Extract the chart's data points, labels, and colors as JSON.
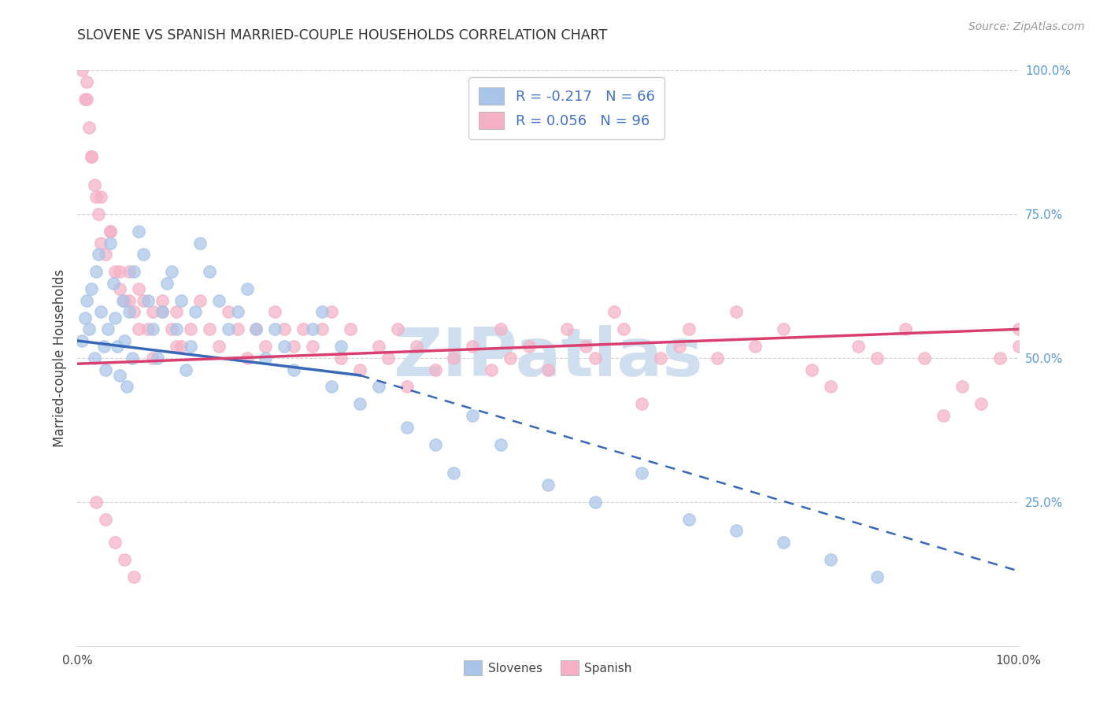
{
  "title": "SLOVENE VS SPANISH MARRIED-COUPLE HOUSEHOLDS CORRELATION CHART",
  "source": "Source: ZipAtlas.com",
  "ylabel": "Married-couple Households",
  "legend_label_1": "R = -0.217   N = 66",
  "legend_label_2": "R = 0.056   N = 96",
  "slovene_color": "#a8c4e8",
  "spanish_color": "#f5b0c5",
  "slovene_trend_color": "#3a68b8",
  "spanish_trend_color": "#d94070",
  "watermark_text": "ZIPatlas",
  "watermark_color": "#d0dff0",
  "background_color": "#ffffff",
  "grid_color": "#cccccc",
  "right_axis_color": "#5b9bd5",
  "title_color": "#333333",
  "source_color": "#999999",
  "xlim": [
    0,
    100
  ],
  "ylim": [
    0,
    100
  ],
  "right_yticks": [
    25,
    50,
    75,
    100
  ],
  "right_yticklabels": [
    "25.0%",
    "50.0%",
    "75.0%",
    "100.0%"
  ],
  "slov_trend_x0": 0,
  "slov_trend_y0": 53,
  "slov_trend_x1": 30,
  "slov_trend_y1": 47,
  "slov_dash_x0": 30,
  "slov_dash_y0": 47,
  "slov_dash_x1": 100,
  "slov_dash_y1": 13,
  "span_trend_x0": 0,
  "span_trend_y0": 49,
  "span_trend_x1": 100,
  "span_trend_y1": 55,
  "slov_pts_x": [
    0.5,
    0.8,
    1.0,
    1.2,
    1.5,
    1.8,
    2.0,
    2.2,
    2.5,
    2.8,
    3.0,
    3.2,
    3.5,
    3.8,
    4.0,
    4.2,
    4.5,
    4.8,
    5.0,
    5.2,
    5.5,
    5.8,
    6.0,
    6.5,
    7.0,
    7.5,
    8.0,
    8.5,
    9.0,
    9.5,
    10.0,
    10.5,
    11.0,
    11.5,
    12.0,
    12.5,
    13.0,
    14.0,
    15.0,
    16.0,
    17.0,
    18.0,
    19.0,
    20.0,
    21.0,
    22.0,
    23.0,
    25.0,
    26.0,
    27.0,
    28.0,
    30.0,
    32.0,
    35.0,
    38.0,
    40.0,
    42.0,
    45.0,
    50.0,
    55.0,
    60.0,
    65.0,
    70.0,
    75.0,
    80.0,
    85.0
  ],
  "slov_pts_y": [
    53,
    57,
    60,
    55,
    62,
    50,
    65,
    68,
    58,
    52,
    48,
    55,
    70,
    63,
    57,
    52,
    47,
    60,
    53,
    45,
    58,
    50,
    65,
    72,
    68,
    60,
    55,
    50,
    58,
    63,
    65,
    55,
    60,
    48,
    52,
    58,
    70,
    65,
    60,
    55,
    58,
    62,
    55,
    50,
    55,
    52,
    48,
    55,
    58,
    45,
    52,
    42,
    45,
    38,
    35,
    30,
    40,
    35,
    28,
    25,
    30,
    22,
    20,
    18,
    15,
    12
  ],
  "span_pts_x": [
    0.5,
    0.8,
    1.0,
    1.2,
    1.5,
    1.8,
    2.0,
    2.2,
    2.5,
    3.0,
    3.5,
    4.0,
    4.5,
    5.0,
    5.5,
    6.0,
    6.5,
    7.0,
    7.5,
    8.0,
    9.0,
    10.0,
    10.5,
    11.0,
    12.0,
    13.0,
    14.0,
    15.0,
    16.0,
    17.0,
    18.0,
    19.0,
    20.0,
    21.0,
    22.0,
    23.0,
    24.0,
    25.0,
    26.0,
    27.0,
    28.0,
    29.0,
    30.0,
    32.0,
    33.0,
    34.0,
    35.0,
    36.0,
    38.0,
    40.0,
    42.0,
    44.0,
    45.0,
    46.0,
    48.0,
    50.0,
    52.0,
    54.0,
    55.0,
    57.0,
    58.0,
    60.0,
    62.0,
    64.0,
    65.0,
    68.0,
    70.0,
    72.0,
    75.0,
    78.0,
    80.0,
    83.0,
    85.0,
    88.0,
    90.0,
    92.0,
    94.0,
    96.0,
    98.0,
    100.0,
    100.0,
    2.0,
    3.0,
    4.0,
    5.0,
    6.0,
    1.0,
    1.5,
    2.5,
    3.5,
    4.5,
    5.5,
    6.5,
    8.0,
    9.0,
    10.5
  ],
  "span_pts_y": [
    100,
    95,
    98,
    90,
    85,
    80,
    78,
    75,
    70,
    68,
    72,
    65,
    62,
    60,
    65,
    58,
    62,
    60,
    55,
    58,
    60,
    55,
    58,
    52,
    55,
    60,
    55,
    52,
    58,
    55,
    50,
    55,
    52,
    58,
    55,
    52,
    55,
    52,
    55,
    58,
    50,
    55,
    48,
    52,
    50,
    55,
    45,
    52,
    48,
    50,
    52,
    48,
    55,
    50,
    52,
    48,
    55,
    52,
    50,
    58,
    55,
    42,
    50,
    52,
    55,
    50,
    58,
    52,
    55,
    48,
    45,
    52,
    50,
    55,
    50,
    40,
    45,
    42,
    50,
    55,
    52,
    25,
    22,
    18,
    15,
    12,
    95,
    85,
    78,
    72,
    65,
    60,
    55,
    50,
    58,
    52
  ]
}
